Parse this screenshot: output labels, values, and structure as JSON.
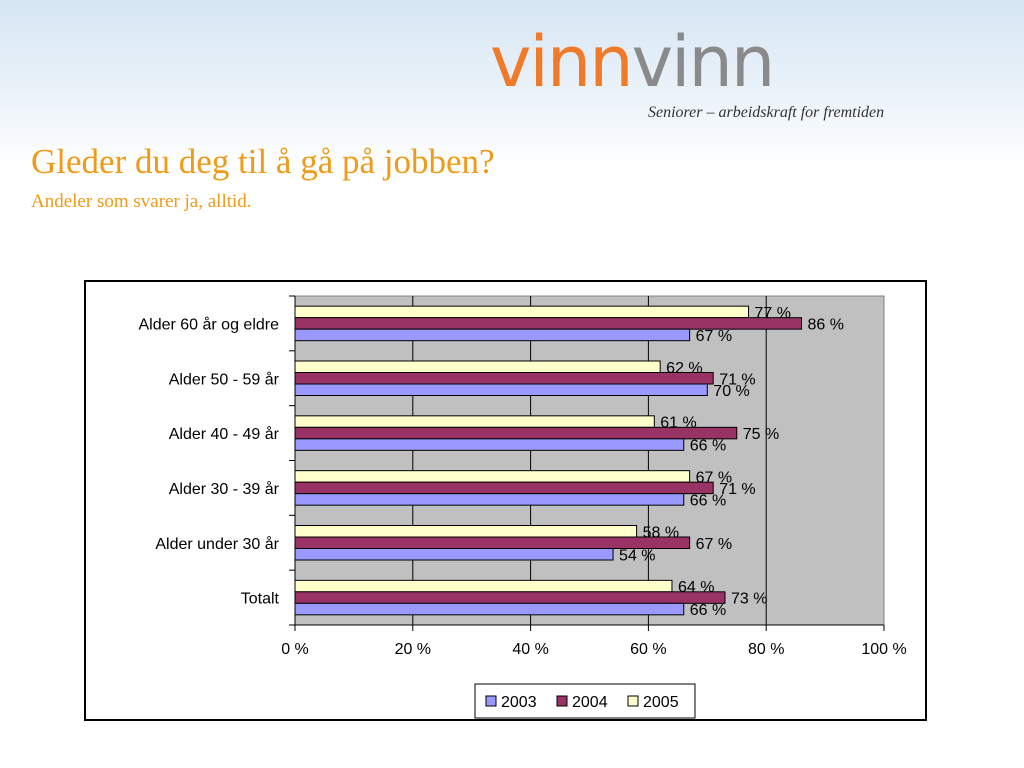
{
  "header": {
    "logo_part1": "vinn",
    "logo_part2": "vinn",
    "tagline": "Seniorer – arbeidskraft for fremtiden",
    "title": "Gleder du deg til å gå på jobben?",
    "subtitle": "Andeler som svarer ja, alltid."
  },
  "chart_data": {
    "type": "bar",
    "orientation": "horizontal",
    "categories": [
      "Alder 60 år og eldre",
      "Alder 50 - 59 år",
      "Alder 40 - 49 år",
      "Alder 30 - 39 år",
      "Alder under 30 år",
      "Totalt"
    ],
    "series": [
      {
        "name": "2003",
        "color": "#9999ff",
        "values": [
          67,
          70,
          66,
          66,
          54,
          66
        ],
        "labels": [
          "67 %",
          "70 %",
          "66 %",
          "66 %",
          "54 %",
          "66 %"
        ]
      },
      {
        "name": "2004",
        "color": "#993366",
        "values": [
          86,
          71,
          75,
          71,
          67,
          73
        ],
        "labels": [
          "86 %",
          "71 %",
          "75 %",
          "71 %",
          "67 %",
          "73 %"
        ]
      },
      {
        "name": "2005",
        "color": "#ffffcc",
        "values": [
          77,
          62,
          61,
          67,
          58,
          64
        ],
        "labels": [
          "77 %",
          "62 %",
          "61 %",
          "67 %",
          "58 %",
          "64 %"
        ]
      }
    ],
    "x_ticks": [
      "0 %",
      "20 %",
      "40 %",
      "60 %",
      "80 %",
      "100 %"
    ],
    "xlim": [
      0,
      100
    ],
    "grid": true,
    "plot_background": "#c0c0c0",
    "legend_position": "bottom"
  }
}
